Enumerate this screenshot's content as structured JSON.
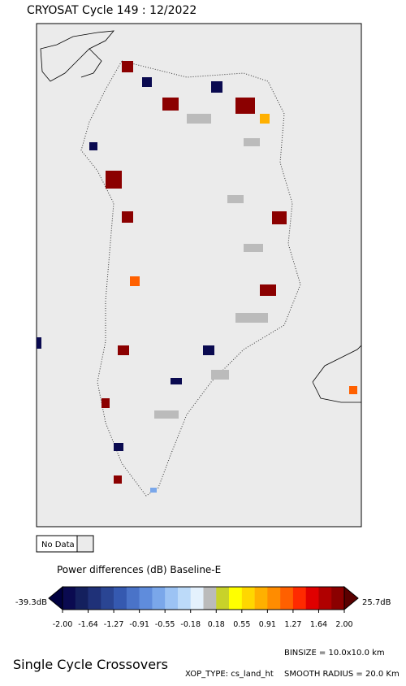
{
  "header": {
    "title": "CRYOSAT Cycle 149 : 12/2022"
  },
  "legend": {
    "no_data": "No Data",
    "caption": "Power differences (dB) Baseline-E",
    "min_label": "-39.3dB",
    "max_label": "25.7dB",
    "ticks": [
      "-2.00",
      "-1.64",
      "-1.27",
      "-0.91",
      "-0.55",
      "-0.18",
      "0.18",
      "0.55",
      "0.91",
      "1.27",
      "1.64",
      "2.00"
    ],
    "colors": [
      "#0a0a50",
      "#14205e",
      "#1f3178",
      "#2a4593",
      "#3559b0",
      "#4a73c8",
      "#5f8cdc",
      "#7aa7ea",
      "#9cc3f4",
      "#bcdaf9",
      "#e4f1fd",
      "#bbbbbb",
      "#c8d22a",
      "#ffff00",
      "#ffd700",
      "#ffb000",
      "#ff8c00",
      "#ff6000",
      "#ff2a00",
      "#e00000",
      "#b00000",
      "#8b0000"
    ],
    "low_color": "#000040",
    "high_color": "#5a0000"
  },
  "footer": {
    "title": "Single Cycle Crossovers",
    "binsize": "BINSIZE = 10.0x10.0 km",
    "xop_type": "XOP_TYPE: cs_land_ht",
    "smooth_radius": "SMOOTH RADIUS = 20.0 Km"
  }
}
